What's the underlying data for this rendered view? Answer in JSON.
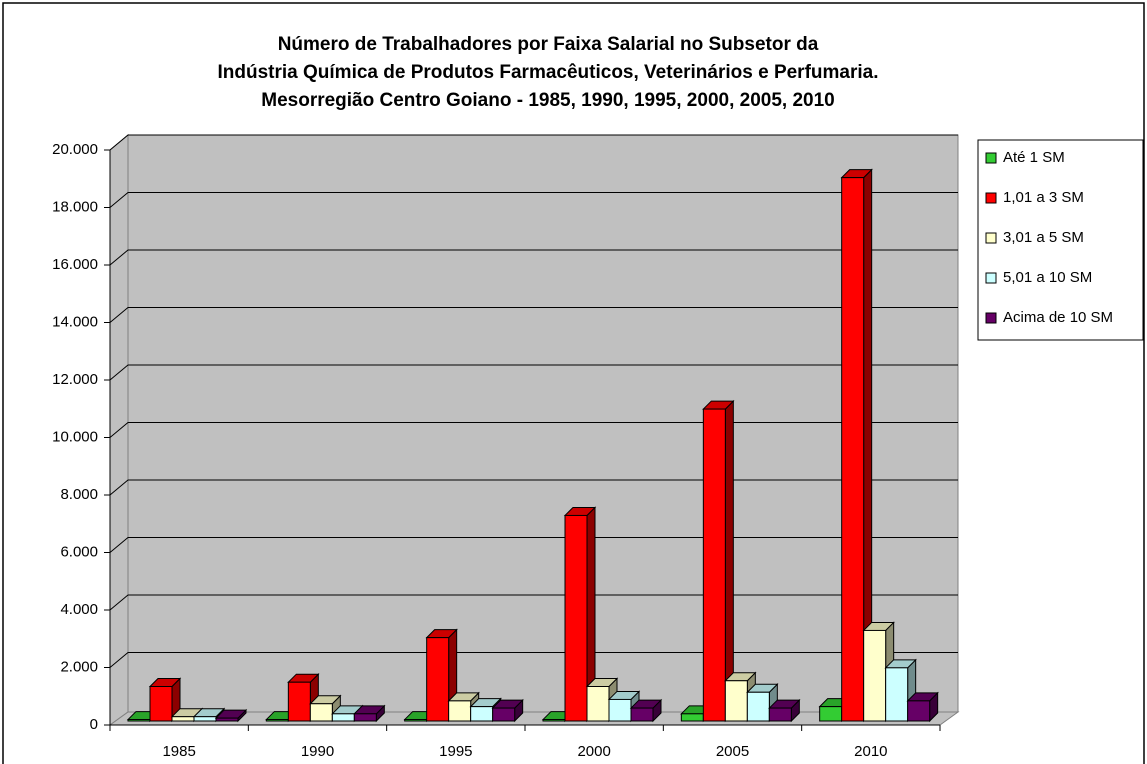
{
  "chart_data": {
    "type": "bar3d",
    "title": [
      "Número de Trabalhadores por Faixa Salarial no Subsetor da",
      "Indústria Química de Produtos Farmacêuticos, Veterinários e Perfumaria.",
      "Mesorregião Centro Goiano - 1985, 1990, 1995, 2000, 2005, 2010"
    ],
    "categories": [
      "1985",
      "1990",
      "1995",
      "2000",
      "2005",
      "2010"
    ],
    "series": [
      {
        "name": "Até 1 SM",
        "color": "#33cc33",
        "values": [
          50,
          50,
          50,
          50,
          250,
          500
        ]
      },
      {
        "name": "1,01 a 3 SM",
        "color": "#ff0000",
        "values": [
          1200,
          1350,
          2900,
          7150,
          10850,
          18900
        ]
      },
      {
        "name": "3,01 a 5 SM",
        "color": "#ffffcc",
        "values": [
          150,
          600,
          700,
          1200,
          1400,
          3150
        ]
      },
      {
        "name": "5,01 a 10 SM",
        "color": "#ccffff",
        "values": [
          150,
          250,
          500,
          750,
          1000,
          1850
        ]
      },
      {
        "name": "Acima de 10 SM",
        "color": "#660066",
        "values": [
          100,
          250,
          450,
          450,
          450,
          700
        ]
      }
    ],
    "ylim": [
      0,
      20000
    ],
    "yticks": [
      0,
      {
        "value": 2000,
        "label": "2.000"
      },
      {
        "value": 4000,
        "label": "4.000"
      },
      {
        "value": 6000,
        "label": "6.000"
      },
      {
        "value": 8000,
        "label": "8.000"
      },
      {
        "value": 10000,
        "label": "10.000"
      },
      {
        "value": 12000,
        "label": "12.000"
      },
      {
        "value": 14000,
        "label": "14.000"
      },
      {
        "value": 16000,
        "label": "16.000"
      },
      {
        "value": 18000,
        "label": "18.000"
      },
      {
        "value": 20000,
        "label": "20.000"
      }
    ],
    "grid": true,
    "legend": "right"
  }
}
